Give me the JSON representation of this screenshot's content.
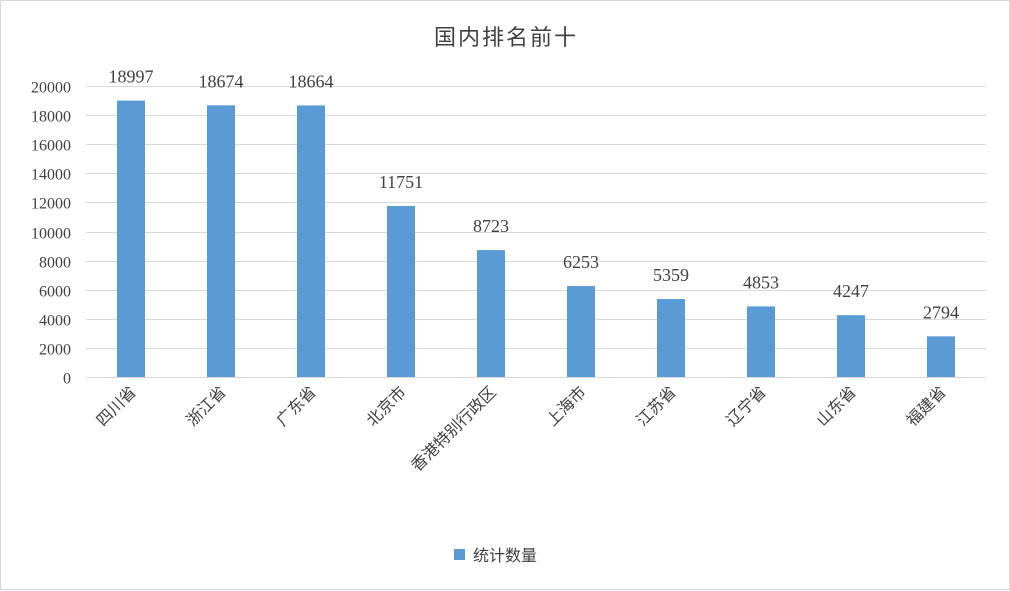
{
  "chart_data": {
    "type": "bar",
    "title": "国内排名前十",
    "categories": [
      "四川省",
      "浙江省",
      "广东省",
      "北京市",
      "香港特别行政区",
      "上海市",
      "江苏省",
      "辽宁省",
      "山东省",
      "福建省"
    ],
    "series": [
      {
        "name": "统计数量",
        "values": [
          18997,
          18674,
          18664,
          11751,
          8723,
          6253,
          5359,
          4853,
          4247,
          2794
        ]
      }
    ],
    "ylim": [
      0,
      20000
    ],
    "yticks": [
      0,
      2000,
      4000,
      6000,
      8000,
      10000,
      12000,
      14000,
      16000,
      18000,
      20000
    ],
    "grid": true,
    "legend_position": "bottom",
    "bar_color": "#5b9bd5"
  }
}
